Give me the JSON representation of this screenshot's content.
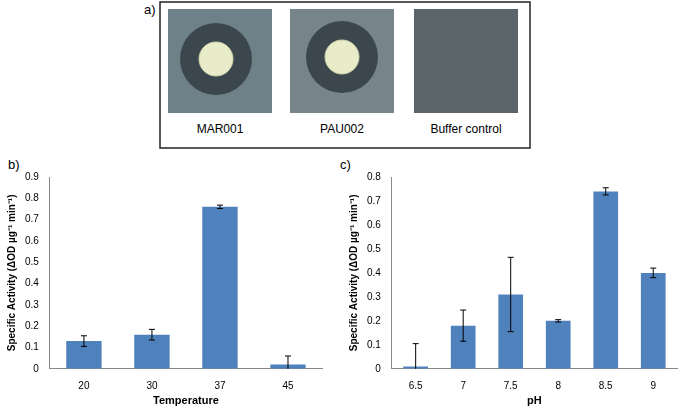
{
  "panel_a": {
    "label": "a)",
    "images": [
      "MAR001",
      "PAU002",
      "Buffer control"
    ]
  },
  "chart_data": [
    {
      "panel": "b)",
      "type": "bar",
      "x_label": "Temperature",
      "y_label": "Specific Activity (ΔOD µg⁻¹ min⁻¹)",
      "categories": [
        "20",
        "30",
        "37",
        "45"
      ],
      "values": [
        0.13,
        0.16,
        0.76,
        0.02
      ],
      "errors": [
        0.025,
        0.025,
        0.008,
        0.04
      ],
      "color": "#4f81bd",
      "ylim": [
        0,
        0.9
      ],
      "yticks": [
        0,
        0.1,
        0.2,
        0.3,
        0.4,
        0.5,
        0.6,
        0.7,
        0.8,
        0.9
      ],
      "grid": false
    },
    {
      "panel": "c)",
      "type": "bar",
      "x_label": "pH",
      "y_label": "Specific Activity (ΔOD µg⁻¹ min⁻¹)",
      "categories": [
        "6.5",
        "7",
        "7.5",
        "8",
        "8.5",
        "9"
      ],
      "values": [
        0.01,
        0.18,
        0.31,
        0.2,
        0.74,
        0.4
      ],
      "errors": [
        0.095,
        0.065,
        0.155,
        0.005,
        0.015,
        0.02
      ],
      "color": "#4f81bd",
      "ylim": [
        0,
        0.8
      ],
      "yticks": [
        0,
        0.1,
        0.2,
        0.3,
        0.4,
        0.5,
        0.6,
        0.7,
        0.8
      ],
      "grid": false
    }
  ]
}
